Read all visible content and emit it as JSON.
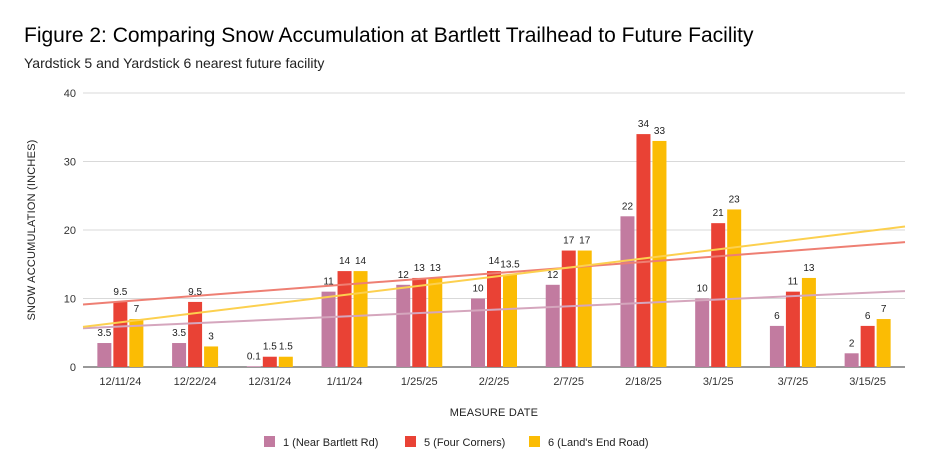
{
  "title": "Figure 2: Comparing Snow Accumulation at Bartlett Trailhead to Future Facility",
  "subtitle": "Yardstick 5 and Yardstick 6 nearest future facility",
  "chart_data": {
    "type": "bar",
    "xlabel": "MEASURE DATE",
    "ylabel": "SNOW ACCUMULATION (INCHES)",
    "ylim": [
      0,
      40
    ],
    "yticks": [
      0,
      10,
      20,
      30,
      40
    ],
    "grid": true,
    "legend_position": "bottom",
    "trendlines": true,
    "categories": [
      "12/11/24",
      "12/22/24",
      "12/31/24",
      "1/11/24",
      "1/25/25",
      "2/2/25",
      "2/7/25",
      "2/18/25",
      "3/1/25",
      "3/7/25",
      "3/15/25"
    ],
    "series": [
      {
        "name": "1 (Near Bartlett Rd)",
        "color": "#c27ba0",
        "trend_color": "#d5a6bd",
        "values": [
          3.5,
          3.5,
          0.1,
          11,
          12,
          10,
          12,
          22,
          10,
          6,
          2
        ],
        "labels": [
          "3.5",
          "3.5",
          "0.1",
          "11",
          "12",
          "10",
          "12",
          "22",
          "10",
          "6",
          "2"
        ]
      },
      {
        "name": "5 (Four Corners)",
        "color": "#e94235",
        "trend_color": "#ee7f73",
        "values": [
          9.5,
          9.5,
          1.5,
          14,
          13,
          14,
          17,
          34,
          21,
          11,
          6
        ],
        "labels": [
          "9.5",
          "9.5",
          "1.5",
          "14",
          "13",
          "14",
          "17",
          "34",
          "21",
          "11",
          "6"
        ]
      },
      {
        "name": "6 (Land's End Road)",
        "color": "#fbbc04",
        "trend_color": "#fcd04f",
        "values": [
          7,
          3,
          1.5,
          14,
          13,
          13.5,
          17,
          33,
          23,
          13,
          7
        ],
        "labels": [
          "7",
          "3",
          "1.5",
          "14",
          "13",
          "13.5",
          "17",
          "33",
          "23",
          "13",
          "7"
        ]
      }
    ]
  }
}
